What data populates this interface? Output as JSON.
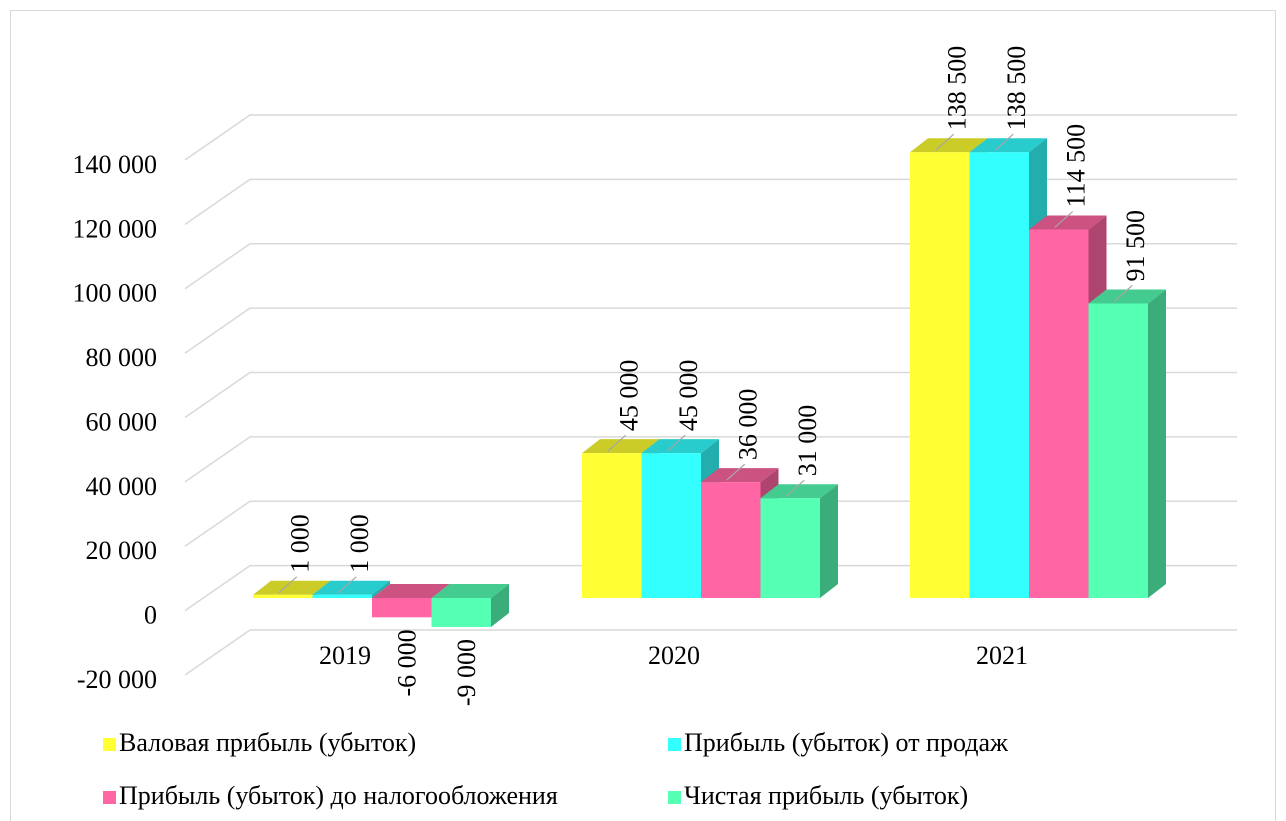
{
  "chart_data": {
    "type": "bar3d",
    "categories": [
      "2019",
      "2020",
      "2021"
    ],
    "series": [
      {
        "name": "Валовая прибыль (убыток)",
        "color": "#ffff33",
        "values": [
          1000,
          45000,
          138500
        ],
        "value_labels": [
          "1 000",
          "45 000",
          "138 500"
        ]
      },
      {
        "name": "Прибыль (убыток) от продаж",
        "color": "#33ffff",
        "values": [
          1000,
          45000,
          138500
        ],
        "value_labels": [
          "1 000",
          "45 000",
          "138 500"
        ]
      },
      {
        "name": "Прибыль (убыток) до налогообложения",
        "color": "#ff66a3",
        "values": [
          -6000,
          36000,
          114500
        ],
        "value_labels": [
          "-6 000",
          "36 000",
          "114 500"
        ]
      },
      {
        "name": "Чистая прибыль (убыток)",
        "color": "#55ffb4",
        "values": [
          -9000,
          31000,
          91500
        ],
        "value_labels": [
          "-9 000",
          "31 000",
          "91 500"
        ]
      }
    ],
    "ylim": [
      -20000,
      140000
    ],
    "yticks": [
      {
        "value": -20000,
        "label": "-20 000"
      },
      0,
      {
        "value": 20000,
        "label": "20 000"
      },
      {
        "value": 40000,
        "label": "40 000"
      },
      {
        "value": 60000,
        "label": "60 000"
      },
      {
        "value": 80000,
        "label": "80 000"
      },
      {
        "value": 100000,
        "label": "100 000"
      },
      {
        "value": 120000,
        "label": "120 000"
      },
      {
        "value": 140000,
        "label": "140 000"
      }
    ],
    "grid": true,
    "legend": "bottom"
  }
}
